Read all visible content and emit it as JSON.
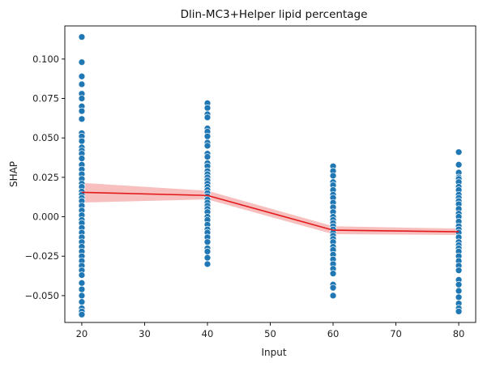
{
  "chart_data": {
    "type": "scatter",
    "title": "Dlin-MC3+Helper lipid percentage",
    "xlabel": "Input",
    "ylabel": "SHAP",
    "xlim": [
      17.3,
      82.7
    ],
    "ylim": [
      -0.067,
      0.121
    ],
    "xticks": [
      20,
      30,
      40,
      50,
      60,
      70,
      80
    ],
    "yticks": [
      -0.05,
      -0.025,
      0.0,
      0.025,
      0.05,
      0.075,
      0.1
    ],
    "ytick_labels": [
      "−0.050",
      "−0.025",
      "0.000",
      "0.025",
      "0.050",
      "0.075",
      "0.100"
    ],
    "grid": false,
    "colors": {
      "points": "#1f77b4",
      "trend_line": "#e31a1c",
      "confidence_band": "#f4a9a8"
    },
    "series": [
      {
        "x": 20,
        "values": [
          0.114,
          0.098,
          0.089,
          0.084,
          0.078,
          0.075,
          0.07,
          0.067,
          0.062,
          0.053,
          0.051,
          0.048,
          0.044,
          0.042,
          0.04,
          0.037,
          0.033,
          0.03,
          0.027,
          0.024,
          0.021,
          0.019,
          0.016,
          0.014,
          0.012,
          0.01,
          0.007,
          0.004,
          0.001,
          -0.002,
          -0.004,
          -0.007,
          -0.01,
          -0.013,
          -0.016,
          -0.019,
          -0.022,
          -0.025,
          -0.028,
          -0.031,
          -0.034,
          -0.037,
          -0.042,
          -0.046,
          -0.05,
          -0.054,
          -0.058,
          -0.06,
          -0.062
        ]
      },
      {
        "x": 40,
        "values": [
          0.072,
          0.069,
          0.065,
          0.063,
          0.056,
          0.054,
          0.051,
          0.047,
          0.045,
          0.04,
          0.038,
          0.034,
          0.032,
          0.029,
          0.027,
          0.025,
          0.023,
          0.021,
          0.019,
          0.017,
          0.015,
          0.013,
          0.011,
          0.009,
          0.007,
          0.005,
          0.003,
          0.0,
          -0.002,
          -0.005,
          -0.008,
          -0.01,
          -0.013,
          -0.016,
          -0.02,
          -0.022,
          -0.026,
          -0.03
        ]
      },
      {
        "x": 60,
        "values": [
          0.032,
          0.029,
          0.026,
          0.022,
          0.02,
          0.017,
          0.014,
          0.012,
          0.009,
          0.006,
          0.003,
          0.0,
          -0.002,
          -0.004,
          -0.006,
          -0.008,
          -0.01,
          -0.012,
          -0.014,
          -0.016,
          -0.019,
          -0.021,
          -0.024,
          -0.027,
          -0.03,
          -0.033,
          -0.036,
          -0.043,
          -0.045,
          -0.05
        ]
      },
      {
        "x": 80,
        "values": [
          0.041,
          0.033,
          0.028,
          0.025,
          0.024,
          0.022,
          0.019,
          0.017,
          0.014,
          0.012,
          0.01,
          0.008,
          0.005,
          0.002,
          0.0,
          -0.003,
          -0.006,
          -0.008,
          -0.01,
          -0.013,
          -0.016,
          -0.018,
          -0.02,
          -0.022,
          -0.025,
          -0.028,
          -0.031,
          -0.034,
          -0.04,
          -0.043,
          -0.047,
          -0.051,
          -0.055,
          -0.058,
          -0.06
        ]
      }
    ],
    "trend_line": {
      "x": [
        20,
        40,
        60,
        80
      ],
      "y": [
        0.0155,
        0.0135,
        -0.0085,
        -0.0095
      ],
      "ci_low": [
        0.009,
        0.011,
        -0.011,
        -0.0115
      ],
      "ci_high": [
        0.0215,
        0.0165,
        -0.006,
        -0.0075
      ]
    }
  }
}
